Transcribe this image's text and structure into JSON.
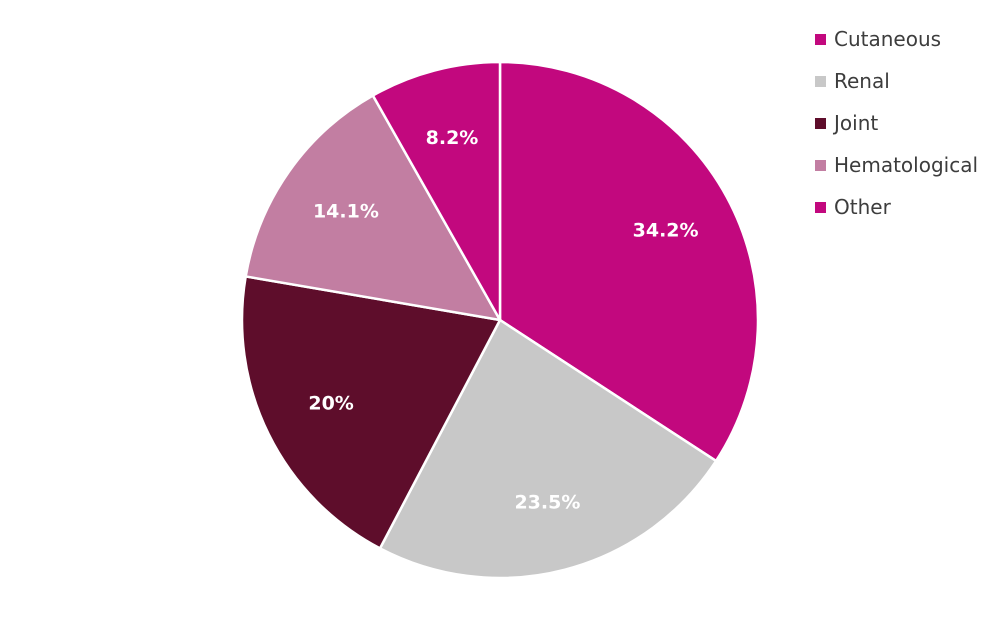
{
  "chart_data": {
    "type": "pie",
    "title": "",
    "legend_position": "top-right",
    "slices": [
      {
        "name": "Cutaneous",
        "value": 34.2,
        "label": "34.2%",
        "color": "#c2087e"
      },
      {
        "name": "Renal",
        "value": 23.5,
        "label": "23.5%",
        "color": "#c8c8c8"
      },
      {
        "name": "Joint",
        "value": 20,
        "label": "20%",
        "color": "#5e0d2b"
      },
      {
        "name": "Hematological",
        "value": 14.1,
        "label": "14.1%",
        "color": "#c27ea2"
      },
      {
        "name": "Other",
        "value": 8.2,
        "label": "8.2%",
        "color": "#c2087e"
      }
    ]
  }
}
